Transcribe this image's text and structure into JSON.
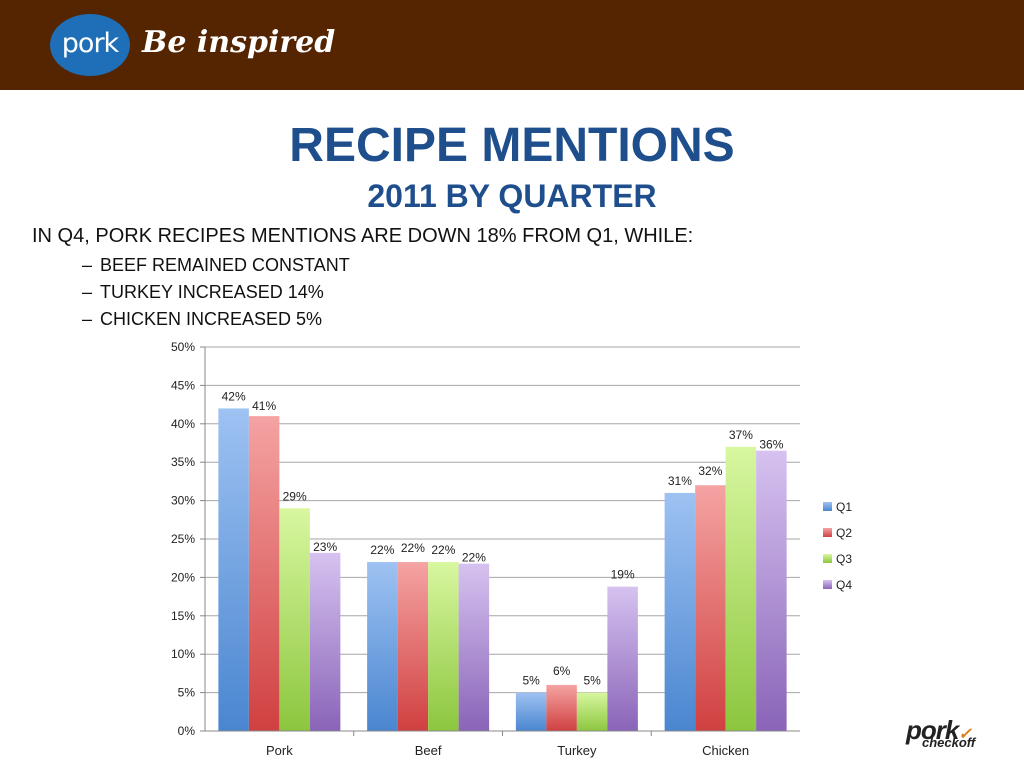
{
  "header": {
    "logo_word": "pork",
    "tagline": "Be inspired"
  },
  "slide": {
    "title": "RECIPE MENTIONS",
    "subtitle": "2011 BY QUARTER",
    "lead": "IN Q4, PORK RECIPES MENTIONS ARE DOWN 18% FROM Q1, WHILE:",
    "bullets": [
      "BEEF REMAINED CONSTANT",
      "TURKEY INCREASED 14%",
      "CHICKEN INCREASED 5%"
    ]
  },
  "footer": {
    "logo_main": "pork",
    "logo_sub": "checkoff"
  },
  "chart_data": {
    "type": "bar",
    "categories": [
      "Pork",
      "Beef",
      "Turkey",
      "Chicken"
    ],
    "series": [
      {
        "name": "Q1",
        "values": [
          42,
          22,
          5,
          31
        ],
        "labels": [
          "42%",
          "22%",
          "5%",
          "31%"
        ],
        "color": "#4a86d0",
        "color_light": "#9ec2f2"
      },
      {
        "name": "Q2",
        "values": [
          41,
          22,
          6,
          32
        ],
        "labels": [
          "41%",
          "22%",
          "6%",
          "32%"
        ],
        "color": "#d04040",
        "color_light": "#f5a3a3"
      },
      {
        "name": "Q3",
        "values": [
          29,
          22,
          5,
          37
        ],
        "labels": [
          "29%",
          "22%",
          "5%",
          "37%"
        ],
        "color": "#8cc63e",
        "color_light": "#d8f7a0"
      },
      {
        "name": "Q4",
        "values": [
          23.2,
          21.8,
          18.8,
          36.5
        ],
        "labels": [
          "23%",
          "22%",
          "19%",
          "36%"
        ],
        "color": "#8a64b8",
        "color_light": "#d6c2f0"
      }
    ],
    "y_ticks": [
      "0%",
      "5%",
      "10%",
      "15%",
      "20%",
      "25%",
      "30%",
      "35%",
      "40%",
      "45%",
      "50%"
    ],
    "ylim": [
      0,
      50
    ],
    "grid": true,
    "legend_position": "right"
  }
}
